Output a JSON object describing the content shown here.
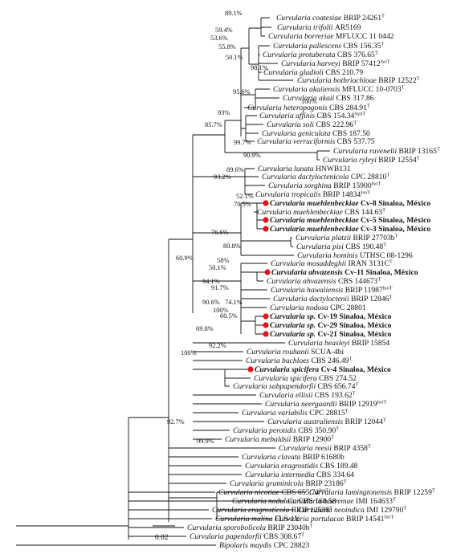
{
  "scale_label": "0.02",
  "highlight_color": "#e3141b",
  "taxa": [
    {
      "genus": "Curvularia",
      "epithet": "coatesiae",
      "voucher": "BRIP 24261",
      "sup": "T"
    },
    {
      "genus": "Curvularia",
      "epithet": "trifolii",
      "voucher": "AR5169",
      "sup": ""
    },
    {
      "genus": "Curvularia",
      "epithet": "borreriae",
      "voucher": "MFLUCC 11 0442",
      "sup": ""
    },
    {
      "genus": "Curvularia",
      "epithet": "pallescens",
      "voucher": "CBS 156.35",
      "sup": "T"
    },
    {
      "genus": "Curvularia",
      "epithet": "protuberata",
      "voucher": "CBS 376.65",
      "sup": "T"
    },
    {
      "genus": "Curvularia",
      "epithet": "harveyi",
      "voucher": "BRIP 57412",
      "sup": "IsoT"
    },
    {
      "genus": "Curvularia",
      "epithet": "gladioli",
      "voucher": "CBS 210.79",
      "sup": ""
    },
    {
      "genus": "Curvularia",
      "epithet": "bothriochloae",
      "voucher": "BRIP 12522",
      "sup": "T"
    },
    {
      "genus": "Curvularia",
      "epithet": "akaiiensis",
      "voucher": "MFLUCC 10-0703",
      "sup": "T"
    },
    {
      "genus": "Curvularia",
      "epithet": "akaii",
      "voucher": "CBS 317.86",
      "sup": ""
    },
    {
      "genus": "Curvularia",
      "epithet": "heteropogonis",
      "voucher": "CBS 284.91",
      "sup": "T"
    },
    {
      "genus": "Curvularia",
      "epithet": "affinis",
      "voucher": "CBS 154.34",
      "sup": "SynT"
    },
    {
      "genus": "Curvularia",
      "epithet": "soli",
      "voucher": "CBS 222.96",
      "sup": "T"
    },
    {
      "genus": "Curvularia",
      "epithet": "geniculata",
      "voucher": "CBS 187.50",
      "sup": ""
    },
    {
      "genus": "Curvularia",
      "epithet": "verruciformis",
      "voucher": "CBS 537.75",
      "sup": ""
    },
    {
      "genus": "Curvularia",
      "epithet": "ravenelii",
      "voucher": "BRIP 13165",
      "sup": "T"
    },
    {
      "genus": "Curvularia",
      "epithet": "ryleyi",
      "voucher": "BRIP 12554",
      "sup": "T"
    },
    {
      "genus": "Curvularia",
      "epithet": "lunata",
      "voucher": "HNWB131",
      "sup": ""
    },
    {
      "genus": "Curvularia",
      "epithet": "dactyloctenicola",
      "voucher": "CPC 28810",
      "sup": "T"
    },
    {
      "genus": "Curvularia",
      "epithet": "sorghina",
      "voucher": "BRIP 15900",
      "sup": "IsoT"
    },
    {
      "genus": "Curvularia",
      "epithet": "tropicalis",
      "voucher": "BRIP 14834",
      "sup": "IsoT"
    },
    {
      "genus": "Curvularia",
      "epithet": "muehlenbeckiae",
      "voucher": "Cv-8 Sinaloa, México",
      "sup": "",
      "bold": true,
      "marker": true
    },
    {
      "genus": "Curvularia",
      "epithet": "muehlenbeckiae",
      "voucher": "CBS 144.63",
      "sup": "T"
    },
    {
      "genus": "Curvularia",
      "epithet": "muehlenbeckiae",
      "voucher": "Cv-5 Sinaloa, México",
      "sup": "",
      "bold": true,
      "marker": true
    },
    {
      "genus": "Curvularia",
      "epithet": "muehlenbeckiae",
      "voucher": "Cv-3 Sinaloa, México",
      "sup": "",
      "bold": true,
      "marker": true
    },
    {
      "genus": "Curvularia",
      "epithet": "platzii",
      "voucher": "BRIP 27703b",
      "sup": "T"
    },
    {
      "genus": "Curvularia",
      "epithet": "pisi",
      "voucher": "CBS 190.48",
      "sup": "T"
    },
    {
      "genus": "Curvularia",
      "epithet": "hominis",
      "voucher": "UTHSC 08-1296",
      "sup": ""
    },
    {
      "genus": "Curvularia",
      "epithet": "mosaddeghii",
      "voucher": "IRAN 3131C",
      "sup": "T"
    },
    {
      "genus": "Curvularia",
      "epithet": "ahvazensis",
      "voucher": "Cv-11 Sinaloa, México",
      "sup": "",
      "bold": true,
      "marker": true
    },
    {
      "genus": "Curvularia",
      "epithet": "ahvazensis",
      "voucher": "CBS 144673",
      "sup": "T"
    },
    {
      "genus": "Curvularia",
      "epithet": "hawaiiensis",
      "voucher": "BRIP 11987",
      "sup": "IsoT"
    },
    {
      "genus": "Curvularia",
      "epithet": "dactyloctenii",
      "voucher": "BRIP 12846",
      "sup": "T"
    },
    {
      "genus": "Curvularia",
      "epithet": "nodosa",
      "voucher": "CPC 28801",
      "sup": ""
    },
    {
      "genus": "Curvularia",
      "epithet": "sp.",
      "voucher": "Cv-19 Sinaloa, México",
      "sup": "",
      "bold": true,
      "marker": true
    },
    {
      "genus": "Curvularia",
      "epithet": "sp.",
      "voucher": "Cv-29 Sinaloa, México",
      "sup": "",
      "bold": true,
      "marker": true
    },
    {
      "genus": "Curvularia",
      "epithet": "sp.",
      "voucher": "Cv-21 Sinaloa, México",
      "sup": "",
      "bold": true,
      "marker": true
    },
    {
      "genus": "Curvularia",
      "epithet": "beasleyi",
      "voucher": "BRIP 15854",
      "sup": ""
    },
    {
      "genus": "Curvularia",
      "epithet": "rouhanii",
      "voucher": "SCUA-4bi",
      "sup": ""
    },
    {
      "genus": "Curvularia",
      "epithet": "buchloes",
      "voucher": "CBS 246.49",
      "sup": "T"
    },
    {
      "genus": "Curvularia",
      "epithet": "spicifera",
      "voucher": "Cv-4 Sinaloa, México",
      "sup": "",
      "bold": true,
      "marker": true
    },
    {
      "genus": "Curvularia",
      "epithet": "spicifera",
      "voucher": "CBS 274.52",
      "sup": ""
    },
    {
      "genus": "Curvularia",
      "epithet": "subpapendorfii",
      "voucher": "CBS 656.74",
      "sup": "T"
    },
    {
      "genus": "Curvularia",
      "epithet": "ellisii",
      "voucher": "CBS 193.62",
      "sup": "T"
    },
    {
      "genus": "Curvularia",
      "epithet": "neergaardii",
      "voucher": "BRIP 12919",
      "sup": "IsoT"
    },
    {
      "genus": "Curvularia",
      "epithet": "variabilis",
      "voucher": "CPC 28815",
      "sup": "T"
    },
    {
      "genus": "Curvularia",
      "epithet": "australiensis",
      "voucher": "BRIP 12044",
      "sup": "T"
    },
    {
      "genus": "Curvularia",
      "epithet": "perotidis",
      "voucher": "CBS 350.90",
      "sup": "T"
    },
    {
      "genus": "Curvularia",
      "epithet": "mebaldsii",
      "voucher": "BRIP 12900",
      "sup": "T"
    },
    {
      "genus": "Curvularia",
      "epithet": "reesii",
      "voucher": "BRIP 4358",
      "sup": "T"
    },
    {
      "genus": "Curvularia",
      "epithet": "clavata",
      "voucher": "BRIP 61680b",
      "sup": ""
    },
    {
      "genus": "Curvularia",
      "epithet": "eragrostidis",
      "voucher": "CBS 189.48",
      "sup": ""
    },
    {
      "genus": "Curvularia",
      "epithet": "intermedia",
      "voucher": "CBS 334.64",
      "sup": ""
    },
    {
      "genus": "Curvularia",
      "epithet": "graminicola",
      "voucher": "BRIP 23186",
      "sup": "T"
    },
    {
      "genus": "Curvularia",
      "epithet": "lamingtonensis",
      "voucher": "BRIP 12259",
      "sup": "T"
    },
    {
      "genus": "Curvularia",
      "epithet": "boeremae",
      "voucher": "IMI 164633",
      "sup": "T"
    },
    {
      "genus": "Curvularia",
      "epithet": "neoindica",
      "voucher": "IMI 129790",
      "sup": "T"
    },
    {
      "genus": "Curvularia",
      "epithet": "portulacae",
      "voucher": "BRIP 14541",
      "sup": "IsoT"
    },
    {
      "genus": "Curvularia",
      "epithet": "nicotiae",
      "voucher": "CBS 655.74",
      "sup": "IsoT"
    },
    {
      "genus": "Curvularia",
      "epithet": "nodulosa",
      "voucher": "CBS 160.58",
      "sup": ""
    },
    {
      "genus": "Curvularia",
      "epithet": "eragrosticola",
      "voucher": "BRIP 12538",
      "sup": "T"
    },
    {
      "genus": "Curvularia",
      "epithet": "malina",
      "voucher": "FLS-1Y",
      "sup": ""
    },
    {
      "genus": "Curvularia",
      "epithet": "sporobolicola",
      "voucher": "BRIP 23040b",
      "sup": "T"
    },
    {
      "genus": "Curvularia",
      "epithet": "papendorfii",
      "voucher": "CBS 308.67",
      "sup": "T"
    },
    {
      "genus": "Bipolaris",
      "epithet": "maydis",
      "voucher": "CPC 28823",
      "sup": ""
    }
  ],
  "supports": [
    "89.1%",
    "59.4%",
    "53.6%",
    "55.8%",
    "50.1%",
    "98.1%",
    "95.6%",
    "100%",
    "93%",
    "85.7%",
    "99.7%",
    "90.9%",
    "89.6%",
    "93.2%",
    "52.1%",
    "70.5%",
    "76.6%",
    "80.8%",
    "58%",
    "50.1%",
    "94.1%",
    "91.7%",
    "90.6%",
    "74.1%",
    "100%",
    "60.5%",
    "69.8%",
    "60.9%",
    "92.2%",
    "100%",
    "99.9%",
    "92.7%"
  ]
}
